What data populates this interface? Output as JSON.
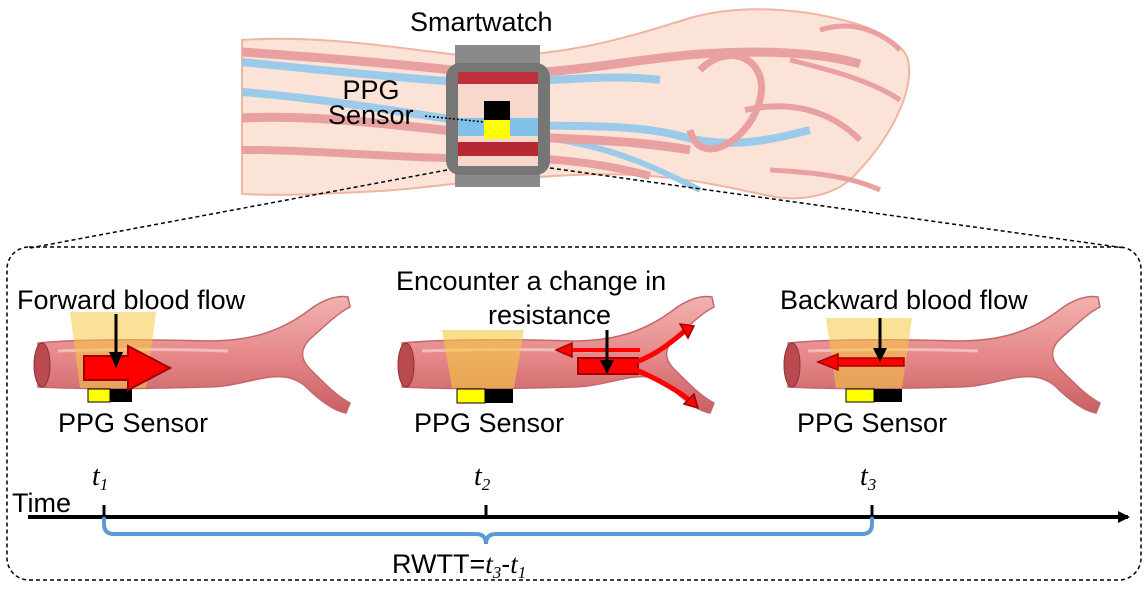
{
  "watch": {
    "title": "Smartwatch",
    "sensor_line1": "PPG",
    "sensor_line2": "Sensor"
  },
  "panels": [
    {
      "heading": "Forward blood flow",
      "sensor": "PPG Sensor"
    },
    {
      "heading_line1": "Encounter a change in",
      "heading_line2": "resistance",
      "sensor": "PPG Sensor"
    },
    {
      "heading": "Backward blood flow",
      "sensor": "PPG Sensor"
    }
  ],
  "timeline": {
    "axis_label": "Time",
    "ticks": [
      {
        "base": "t",
        "sub": "1"
      },
      {
        "base": "t",
        "sub": "2"
      },
      {
        "base": "t",
        "sub": "3"
      }
    ],
    "formula_prefix": "RWTT=",
    "formula_t3": "t",
    "formula_t3_sub": "3",
    "formula_minus": "-",
    "formula_t1": "t",
    "formula_t1_sub": "1"
  },
  "colors": {
    "artery": "#e8898c",
    "vein": "#8fc3e6",
    "skin": "#fbe1d6",
    "sensor_yellow": "#ffff00",
    "arrow_red": "#ff0000",
    "bracket_blue": "#5b9bd5",
    "watch_gray": "#7f7f7f"
  }
}
